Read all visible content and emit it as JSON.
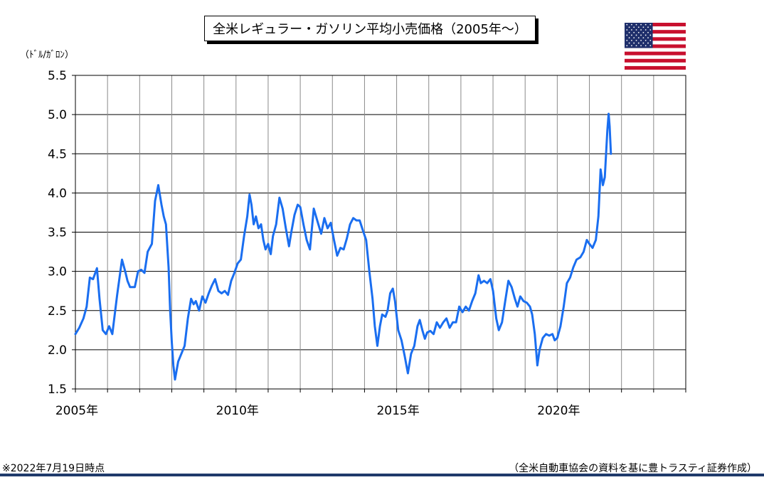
{
  "title": "全米レギュラー・ガソリン平均小売価格（2005年～）",
  "unit": "（ﾄﾞﾙ/ｶﾞﾛﾝ）",
  "footer_note": "※2022年7月19日時点",
  "source_note": "（全米自動車協会の資料を基に豊トラスティ証券作成）",
  "flag_icon": "us-flag-icon",
  "colors": {
    "line": "#1a6ef0",
    "grid": "#000000",
    "rule": "#1f3a6b"
  },
  "chart_data": {
    "type": "line",
    "title": "全米レギュラー・ガソリン平均小売価格（2005年～）",
    "ylabel": "（ﾄﾞﾙ/ｶﾞﾛﾝ）",
    "xlabel": "",
    "xlim": [
      2005,
      2024
    ],
    "ylim": [
      1.5,
      5.5
    ],
    "x_ticks": [
      2005,
      2010,
      2015,
      2020
    ],
    "x_tick_labels": [
      "2005年",
      "2010年",
      "2015年",
      "2020年"
    ],
    "y_ticks": [
      1.5,
      2.0,
      2.5,
      3.0,
      3.5,
      4.0,
      4.5,
      5.0,
      5.5
    ],
    "y_tick_labels": [
      "1.5",
      "2.0",
      "2.5",
      "3.0",
      "3.5",
      "4.0",
      "4.5",
      "5.0",
      "5.5"
    ],
    "grid": true,
    "series": [
      {
        "values": [
          [
            2005.0,
            2.2
          ],
          [
            2005.12,
            2.28
          ],
          [
            2005.25,
            2.4
          ],
          [
            2005.35,
            2.55
          ],
          [
            2005.45,
            2.92
          ],
          [
            2005.55,
            2.9
          ],
          [
            2005.67,
            3.04
          ],
          [
            2005.75,
            2.65
          ],
          [
            2005.85,
            2.25
          ],
          [
            2005.95,
            2.2
          ],
          [
            2006.05,
            2.3
          ],
          [
            2006.15,
            2.2
          ],
          [
            2006.3,
            2.7
          ],
          [
            2006.45,
            3.15
          ],
          [
            2006.55,
            3.0
          ],
          [
            2006.62,
            2.88
          ],
          [
            2006.7,
            2.8
          ],
          [
            2006.85,
            2.8
          ],
          [
            2006.95,
            3.0
          ],
          [
            2007.05,
            3.02
          ],
          [
            2007.15,
            2.98
          ],
          [
            2007.25,
            3.25
          ],
          [
            2007.38,
            3.35
          ],
          [
            2007.48,
            3.9
          ],
          [
            2007.58,
            4.1
          ],
          [
            2007.68,
            3.85
          ],
          [
            2007.75,
            3.7
          ],
          [
            2007.82,
            3.6
          ],
          [
            2007.9,
            3.05
          ],
          [
            2007.95,
            2.5
          ],
          [
            2008.0,
            2.1
          ],
          [
            2008.05,
            1.8
          ],
          [
            2008.1,
            1.62
          ],
          [
            2008.2,
            1.85
          ],
          [
            2008.3,
            1.95
          ],
          [
            2008.4,
            2.05
          ],
          [
            2008.5,
            2.4
          ],
          [
            2008.6,
            2.65
          ],
          [
            2008.68,
            2.58
          ],
          [
            2008.75,
            2.62
          ],
          [
            2008.85,
            2.5
          ],
          [
            2008.95,
            2.68
          ],
          [
            2009.05,
            2.6
          ],
          [
            2009.15,
            2.72
          ],
          [
            2009.25,
            2.82
          ],
          [
            2009.35,
            2.9
          ],
          [
            2009.45,
            2.75
          ],
          [
            2009.55,
            2.72
          ],
          [
            2009.65,
            2.75
          ],
          [
            2009.75,
            2.7
          ],
          [
            2009.85,
            2.88
          ],
          [
            2009.95,
            2.98
          ],
          [
            2010.05,
            3.1
          ],
          [
            2010.15,
            3.15
          ],
          [
            2010.25,
            3.45
          ],
          [
            2010.35,
            3.7
          ],
          [
            2010.42,
            3.98
          ],
          [
            2010.48,
            3.85
          ],
          [
            2010.55,
            3.6
          ],
          [
            2010.62,
            3.7
          ],
          [
            2010.7,
            3.55
          ],
          [
            2010.78,
            3.6
          ],
          [
            2010.85,
            3.4
          ],
          [
            2010.92,
            3.28
          ],
          [
            2011.0,
            3.35
          ],
          [
            2011.08,
            3.22
          ],
          [
            2011.15,
            3.45
          ],
          [
            2011.25,
            3.6
          ],
          [
            2011.35,
            3.94
          ],
          [
            2011.45,
            3.8
          ],
          [
            2011.55,
            3.55
          ],
          [
            2011.65,
            3.32
          ],
          [
            2011.72,
            3.5
          ],
          [
            2011.82,
            3.72
          ],
          [
            2011.92,
            3.85
          ],
          [
            2012.0,
            3.82
          ],
          [
            2012.1,
            3.6
          ],
          [
            2012.2,
            3.4
          ],
          [
            2012.3,
            3.28
          ],
          [
            2012.42,
            3.8
          ],
          [
            2012.55,
            3.62
          ],
          [
            2012.65,
            3.48
          ],
          [
            2012.75,
            3.68
          ],
          [
            2012.85,
            3.55
          ],
          [
            2012.95,
            3.62
          ],
          [
            2013.05,
            3.4
          ],
          [
            2013.15,
            3.2
          ],
          [
            2013.25,
            3.3
          ],
          [
            2013.35,
            3.28
          ],
          [
            2013.45,
            3.42
          ],
          [
            2013.55,
            3.6
          ],
          [
            2013.65,
            3.68
          ],
          [
            2013.75,
            3.65
          ],
          [
            2013.85,
            3.65
          ],
          [
            2013.95,
            3.52
          ],
          [
            2014.05,
            3.4
          ],
          [
            2014.15,
            3.0
          ],
          [
            2014.25,
            2.65
          ],
          [
            2014.32,
            2.3
          ],
          [
            2014.4,
            2.05
          ],
          [
            2014.48,
            2.3
          ],
          [
            2014.55,
            2.45
          ],
          [
            2014.65,
            2.42
          ],
          [
            2014.72,
            2.5
          ],
          [
            2014.8,
            2.72
          ],
          [
            2014.88,
            2.78
          ],
          [
            2014.95,
            2.62
          ],
          [
            2015.05,
            2.25
          ],
          [
            2015.15,
            2.12
          ],
          [
            2015.25,
            1.92
          ],
          [
            2015.35,
            1.7
          ],
          [
            2015.45,
            1.95
          ],
          [
            2015.55,
            2.05
          ],
          [
            2015.65,
            2.3
          ],
          [
            2015.72,
            2.38
          ],
          [
            2015.8,
            2.25
          ],
          [
            2015.88,
            2.14
          ],
          [
            2015.95,
            2.22
          ],
          [
            2016.05,
            2.24
          ],
          [
            2016.15,
            2.2
          ],
          [
            2016.25,
            2.35
          ],
          [
            2016.35,
            2.28
          ],
          [
            2016.45,
            2.35
          ],
          [
            2016.55,
            2.4
          ],
          [
            2016.65,
            2.28
          ],
          [
            2016.75,
            2.35
          ],
          [
            2016.85,
            2.35
          ],
          [
            2016.95,
            2.55
          ],
          [
            2017.05,
            2.48
          ],
          [
            2017.15,
            2.55
          ],
          [
            2017.25,
            2.5
          ],
          [
            2017.35,
            2.62
          ],
          [
            2017.45,
            2.72
          ],
          [
            2017.55,
            2.95
          ],
          [
            2017.62,
            2.85
          ],
          [
            2017.72,
            2.88
          ],
          [
            2017.82,
            2.85
          ],
          [
            2017.92,
            2.9
          ],
          [
            2018.0,
            2.75
          ],
          [
            2018.1,
            2.4
          ],
          [
            2018.18,
            2.25
          ],
          [
            2018.28,
            2.35
          ],
          [
            2018.38,
            2.62
          ],
          [
            2018.48,
            2.88
          ],
          [
            2018.58,
            2.8
          ],
          [
            2018.68,
            2.65
          ],
          [
            2018.76,
            2.55
          ],
          [
            2018.85,
            2.68
          ],
          [
            2018.95,
            2.62
          ],
          [
            2019.05,
            2.6
          ],
          [
            2019.15,
            2.55
          ],
          [
            2019.22,
            2.45
          ],
          [
            2019.3,
            2.2
          ],
          [
            2019.38,
            1.8
          ],
          [
            2019.45,
            2.0
          ],
          [
            2019.55,
            2.15
          ],
          [
            2019.65,
            2.2
          ],
          [
            2019.75,
            2.18
          ],
          [
            2019.85,
            2.2
          ],
          [
            2019.92,
            2.12
          ],
          [
            2020.0,
            2.15
          ],
          [
            2020.1,
            2.3
          ],
          [
            2020.2,
            2.55
          ],
          [
            2020.3,
            2.85
          ],
          [
            2020.4,
            2.92
          ],
          [
            2020.5,
            3.05
          ],
          [
            2020.6,
            3.15
          ],
          [
            2020.72,
            3.18
          ],
          [
            2020.82,
            3.25
          ],
          [
            2020.92,
            3.4
          ],
          [
            2021.0,
            3.35
          ],
          [
            2021.1,
            3.3
          ],
          [
            2021.2,
            3.4
          ],
          [
            2021.28,
            3.7
          ],
          [
            2021.35,
            4.3
          ],
          [
            2021.42,
            4.1
          ],
          [
            2021.48,
            4.2
          ],
          [
            2021.52,
            4.5
          ],
          [
            2021.56,
            4.8
          ],
          [
            2021.6,
            5.01
          ],
          [
            2021.63,
            4.85
          ],
          [
            2021.67,
            4.5
          ]
        ]
      }
    ]
  }
}
